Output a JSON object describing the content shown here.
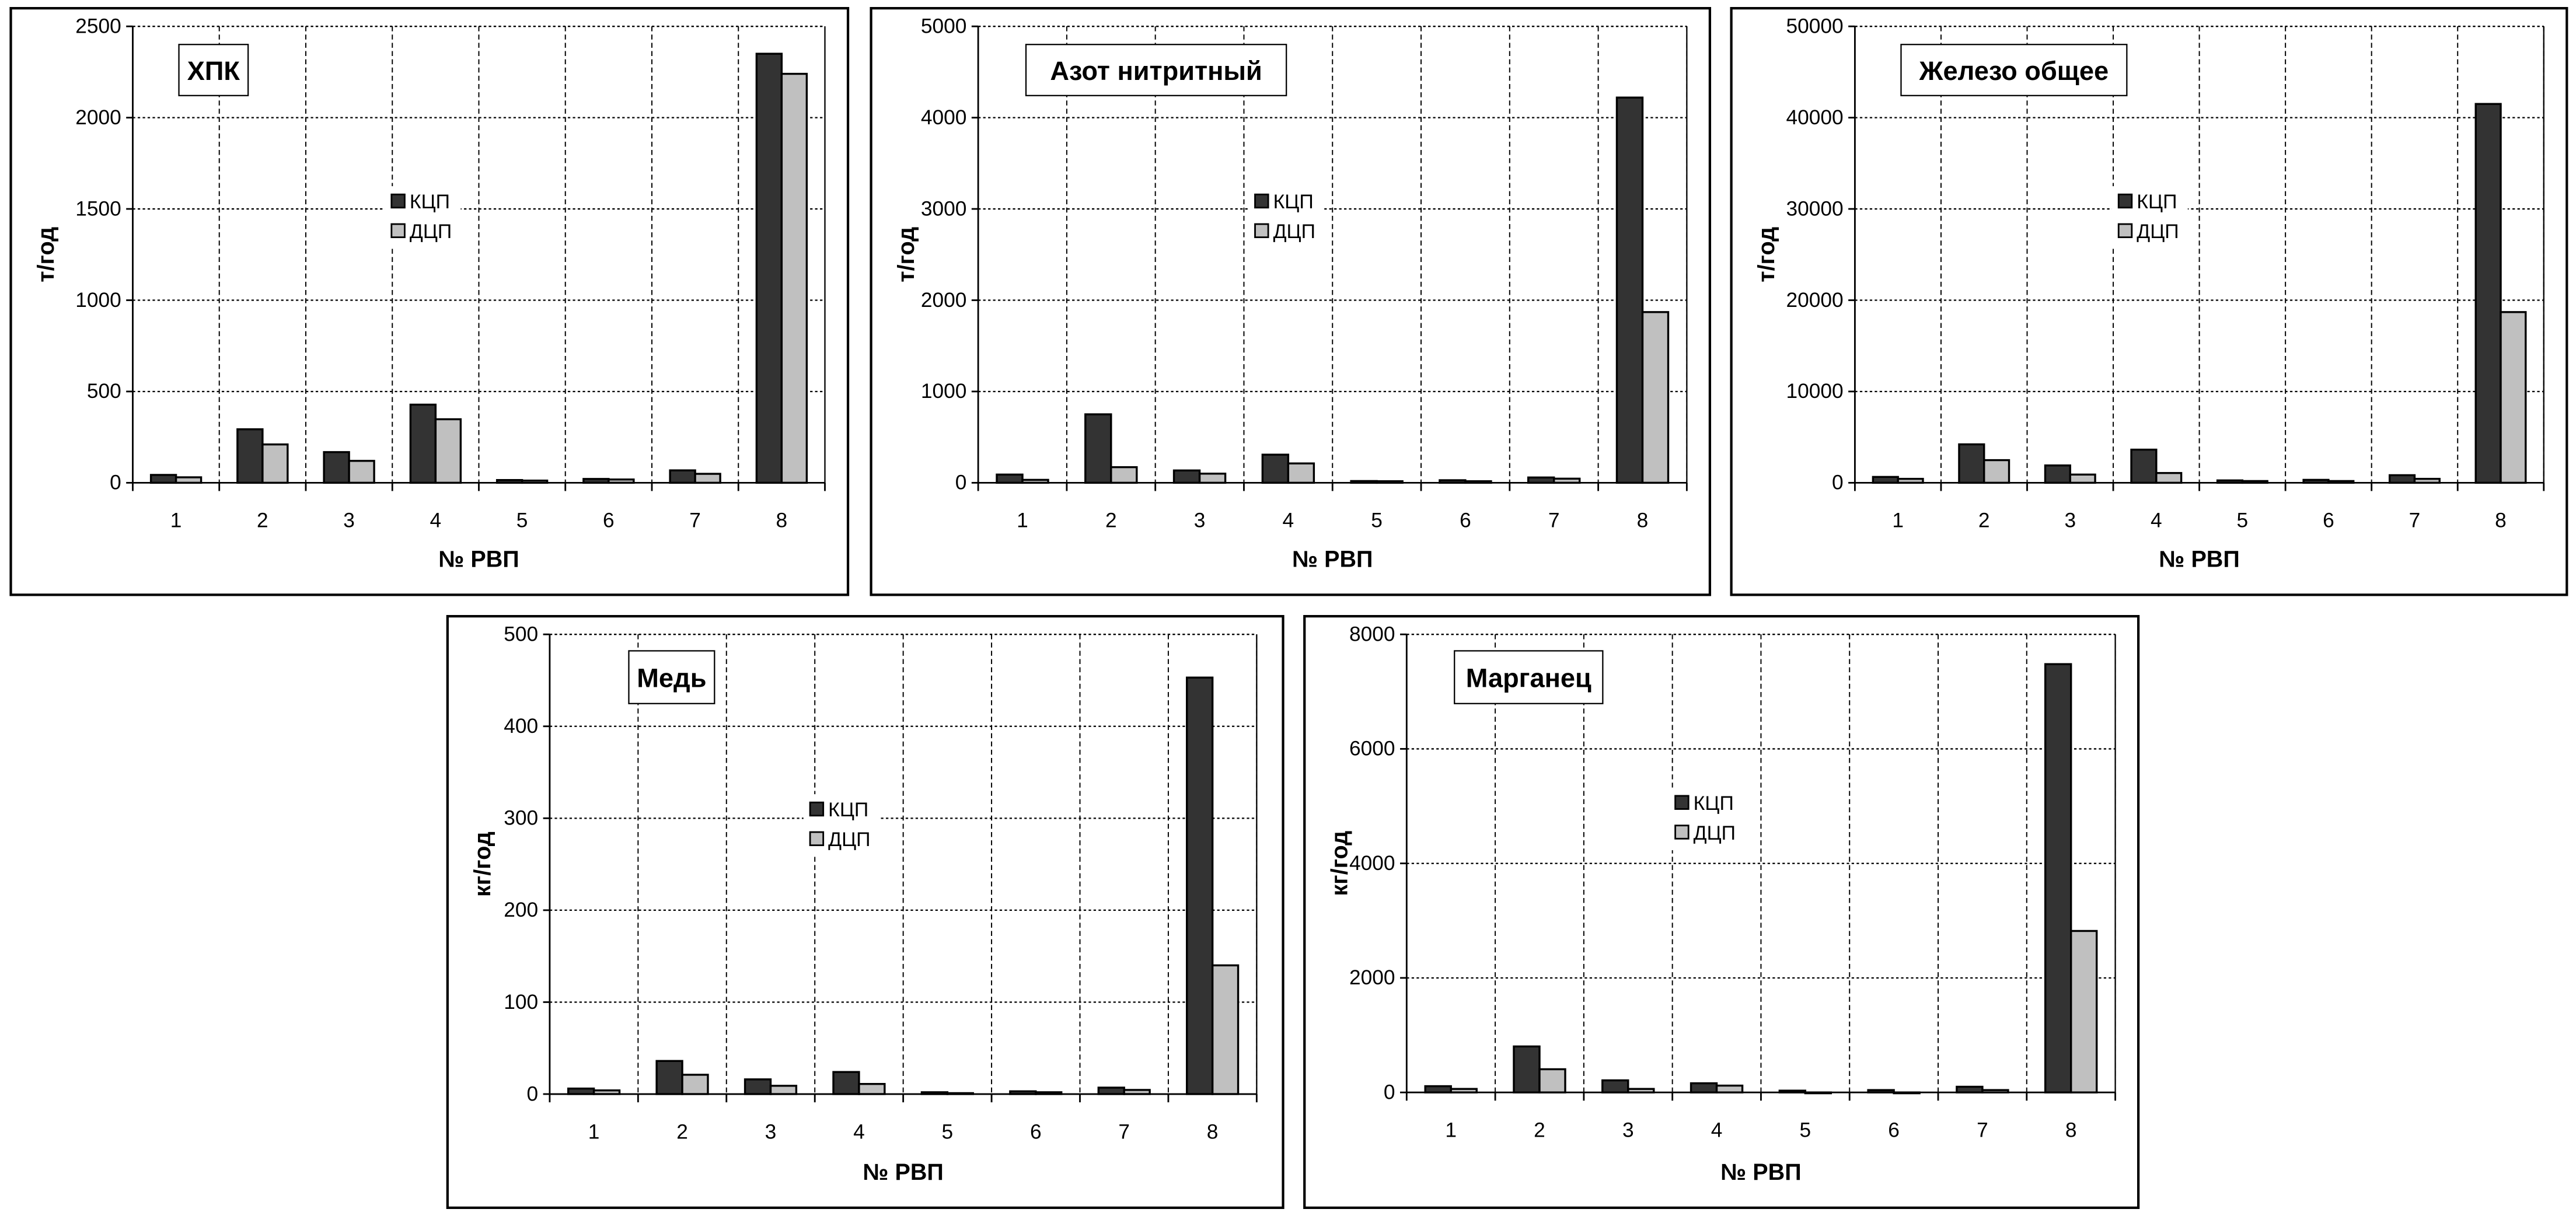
{
  "legend": [
    "КЦП",
    "ДЦП"
  ],
  "colors": {
    "КЦП": "#333333",
    "ДЦП": "#c0c0c0"
  },
  "chart_data": [
    {
      "type": "bar",
      "title": "ХПК",
      "xlabel": "№ РВП",
      "ylabel": "т/год",
      "categories": [
        "1",
        "2",
        "3",
        "4",
        "5",
        "6",
        "7",
        "8"
      ],
      "ylim": [
        0,
        2500
      ],
      "yticks": [
        0,
        500,
        1000,
        1500,
        2000,
        2500
      ],
      "grid": true,
      "legend_position": "center",
      "series": [
        {
          "name": "КЦП",
          "values": [
            43,
            293,
            168,
            428,
            15,
            21,
            68,
            2350
          ]
        },
        {
          "name": "ДЦП",
          "values": [
            30,
            210,
            120,
            348,
            12,
            18,
            49,
            2240
          ]
        }
      ]
    },
    {
      "type": "bar",
      "title": "Азот нитритный",
      "xlabel": "№ РВП",
      "ylabel": "т/год",
      "categories": [
        "1",
        "2",
        "3",
        "4",
        "5",
        "6",
        "7",
        "8"
      ],
      "ylim": [
        0,
        5000
      ],
      "yticks": [
        0,
        1000,
        2000,
        3000,
        4000,
        5000
      ],
      "grid": true,
      "legend_position": "center",
      "series": [
        {
          "name": "КЦП",
          "values": [
            90,
            750,
            135,
            308,
            19,
            28,
            58,
            4220
          ]
        },
        {
          "name": "ДЦП",
          "values": [
            32,
            171,
            100,
            212,
            17,
            17,
            45,
            1870
          ]
        }
      ]
    },
    {
      "type": "bar",
      "title": "Железо общее",
      "xlabel": "№ РВП",
      "ylabel": "т/год",
      "categories": [
        "1",
        "2",
        "3",
        "4",
        "5",
        "6",
        "7",
        "8"
      ],
      "ylim": [
        0,
        50000
      ],
      "yticks": [
        0,
        10000,
        20000,
        30000,
        40000,
        50000
      ],
      "grid": true,
      "legend_position": "center",
      "series": [
        {
          "name": "КЦП",
          "values": [
            640,
            4210,
            1900,
            3630,
            260,
            320,
            830,
            41500
          ]
        },
        {
          "name": "ДЦП",
          "values": [
            430,
            2480,
            900,
            1070,
            190,
            190,
            430,
            18700
          ]
        }
      ]
    },
    {
      "type": "bar",
      "title": "Медь",
      "xlabel": "№ РВП",
      "ylabel": "кг/год",
      "categories": [
        "1",
        "2",
        "3",
        "4",
        "5",
        "6",
        "7",
        "8"
      ],
      "ylim": [
        0,
        500
      ],
      "yticks": [
        0,
        100,
        200,
        300,
        400,
        500
      ],
      "grid": true,
      "legend_position": "center",
      "series": [
        {
          "name": "КЦП",
          "values": [
            6,
            36,
            16,
            24,
            2,
            3,
            7,
            453
          ]
        },
        {
          "name": "ДЦП",
          "values": [
            4,
            21,
            9,
            11,
            1,
            2,
            4.5,
            140
          ]
        }
      ]
    },
    {
      "type": "bar",
      "title": "Марганец",
      "xlabel": "№ РВП",
      "ylabel": "кг/год",
      "categories": [
        "1",
        "2",
        "3",
        "4",
        "5",
        "6",
        "7",
        "8"
      ],
      "ylim": [
        0,
        8000
      ],
      "yticks": [
        0,
        2000,
        4000,
        6000,
        8000
      ],
      "grid": true,
      "legend_position": "center",
      "series": [
        {
          "name": "КЦП",
          "values": [
            109,
            803,
            211,
            160,
            31,
            41,
            99,
            7480
          ]
        },
        {
          "name": "ДЦП",
          "values": [
            61,
            405,
            61,
            119,
            0,
            0,
            41,
            2820
          ]
        }
      ]
    }
  ]
}
